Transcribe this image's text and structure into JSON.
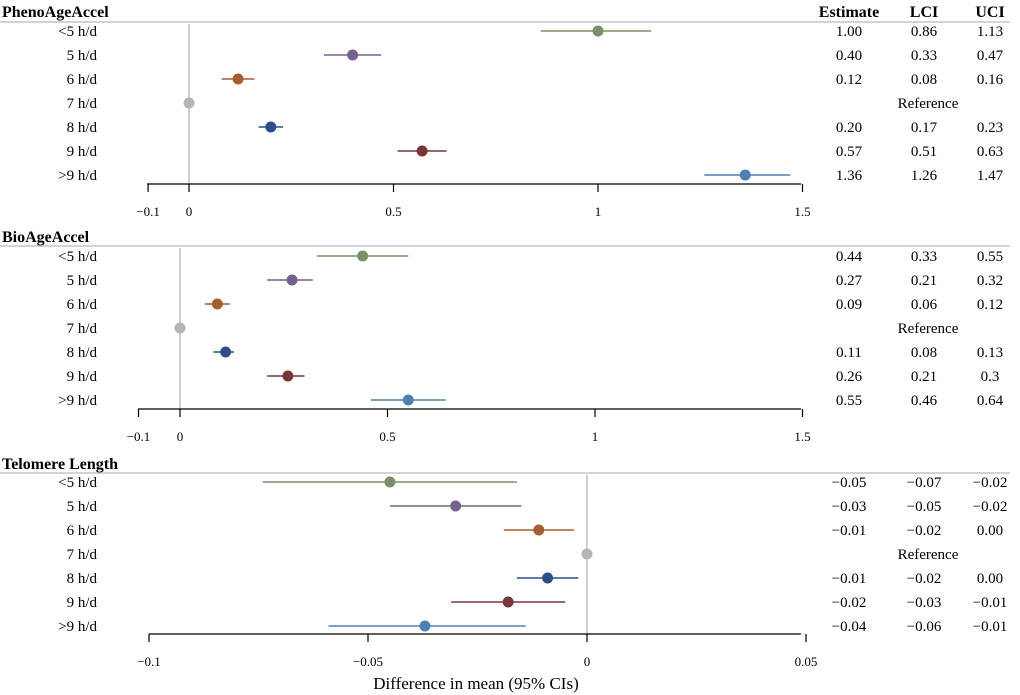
{
  "chart_data": {
    "type": "forest",
    "xlabel": "Difference in mean (95% CIs)",
    "columns": {
      "estimate": "Estimate",
      "lci": "LCI",
      "uci": "UCI"
    },
    "categories": [
      "<5 h/d",
      "5 h/d",
      "6 h/d",
      "7 h/d",
      "8 h/d",
      "9 h/d",
      ">9 h/d"
    ],
    "category_colors": [
      "#7a8f6a",
      "#75628e",
      "#a65d32",
      "#b5b5b5",
      "#2c4f8c",
      "#7b3439",
      "#4e80b5"
    ],
    "reference_label": "Reference",
    "panels": [
      {
        "title": "PhenoAgeAccel",
        "xlim": [
          -0.1,
          1.5
        ],
        "ticks": [
          -0.1,
          0,
          0.5,
          1,
          1.5
        ],
        "tick_labels": [
          "−0.1",
          "0",
          "0.5",
          "1",
          "1.5"
        ],
        "rows": [
          {
            "est": 1.0,
            "lci": 0.86,
            "uci": 1.13,
            "est_text": "1.00",
            "lci_text": "0.86",
            "uci_text": "1.13"
          },
          {
            "est": 0.4,
            "lci": 0.33,
            "uci": 0.47,
            "est_text": "0.40",
            "lci_text": "0.33",
            "uci_text": "0.47"
          },
          {
            "est": 0.12,
            "lci": 0.08,
            "uci": 0.16,
            "est_text": "0.12",
            "lci_text": "0.08",
            "uci_text": "0.16"
          },
          {
            "est": 0,
            "ref": true
          },
          {
            "est": 0.2,
            "lci": 0.17,
            "uci": 0.23,
            "est_text": "0.20",
            "lci_text": "0.17",
            "uci_text": "0.23"
          },
          {
            "est": 0.57,
            "lci": 0.51,
            "uci": 0.63,
            "est_text": "0.57",
            "lci_text": "0.51",
            "uci_text": "0.63"
          },
          {
            "est": 1.36,
            "lci": 1.26,
            "uci": 1.47,
            "est_text": "1.36",
            "lci_text": "1.26",
            "uci_text": "1.47"
          }
        ]
      },
      {
        "title": "BioAgeAccel",
        "xlim": [
          -0.1,
          1.5
        ],
        "ticks": [
          -0.1,
          0,
          0.5,
          1,
          1.5
        ],
        "tick_labels": [
          "−0.1",
          "0",
          "0.5",
          "1",
          "1.5"
        ],
        "rows": [
          {
            "est": 0.44,
            "lci": 0.33,
            "uci": 0.55,
            "est_text": "0.44",
            "lci_text": "0.33",
            "uci_text": "0.55"
          },
          {
            "est": 0.27,
            "lci": 0.21,
            "uci": 0.32,
            "est_text": "0.27",
            "lci_text": "0.21",
            "uci_text": "0.32"
          },
          {
            "est": 0.09,
            "lci": 0.06,
            "uci": 0.12,
            "est_text": "0.09",
            "lci_text": "0.06",
            "uci_text": "0.12"
          },
          {
            "est": 0,
            "ref": true
          },
          {
            "est": 0.11,
            "lci": 0.08,
            "uci": 0.13,
            "est_text": "0.11",
            "lci_text": "0.08",
            "uci_text": "0.13"
          },
          {
            "est": 0.26,
            "lci": 0.21,
            "uci": 0.3,
            "est_text": "0.26",
            "lci_text": "0.21",
            "uci_text": "0.3"
          },
          {
            "est": 0.55,
            "lci": 0.46,
            "uci": 0.64,
            "est_text": "0.55",
            "lci_text": "0.46",
            "uci_text": "0.64"
          }
        ]
      },
      {
        "title": "Telomere Length",
        "xlim": [
          -0.1,
          0.05
        ],
        "ticks": [
          -0.1,
          -0.05,
          0,
          0.05
        ],
        "tick_labels": [
          "−0.1",
          "−0.05",
          "0",
          "0.05"
        ],
        "rows": [
          {
            "est": -0.045,
            "lci": -0.074,
            "uci": -0.016,
            "est_text": "−0.05",
            "lci_text": "−0.07",
            "uci_text": "−0.02"
          },
          {
            "est": -0.03,
            "lci": -0.045,
            "uci": -0.015,
            "est_text": "−0.03",
            "lci_text": "−0.05",
            "uci_text": "−0.02"
          },
          {
            "est": -0.011,
            "lci": -0.019,
            "uci": -0.003,
            "est_text": "−0.01",
            "lci_text": "−0.02",
            "uci_text": "0.00"
          },
          {
            "est": 0,
            "ref": true
          },
          {
            "est": -0.009,
            "lci": -0.016,
            "uci": -0.002,
            "est_text": "−0.01",
            "lci_text": "−0.02",
            "uci_text": "0.00"
          },
          {
            "est": -0.018,
            "lci": -0.031,
            "uci": -0.005,
            "est_text": "−0.02",
            "lci_text": "−0.03",
            "uci_text": "−0.01"
          },
          {
            "est": -0.037,
            "lci": -0.059,
            "uci": -0.014,
            "est_text": "−0.04",
            "lci_text": "−0.06",
            "uci_text": "−0.01"
          }
        ]
      }
    ]
  }
}
